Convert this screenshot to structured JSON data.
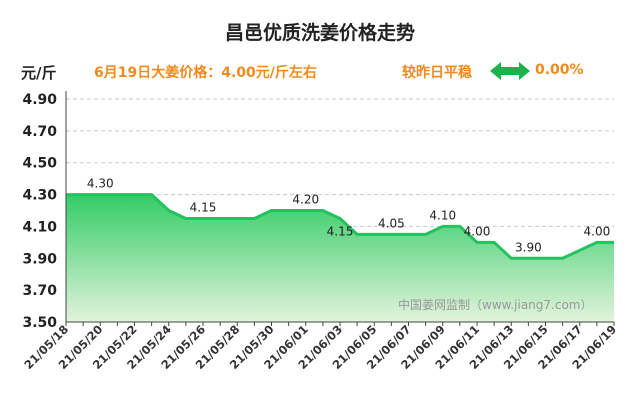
{
  "header": {
    "title": "昌邑优质洗姜价格走势",
    "unit": "元/斤",
    "today_price": "6月19日大姜价格：4.00元/斤左右",
    "compare_label": "较昨日平稳",
    "compare_value": "0.00%"
  },
  "icons": {
    "change_indicator": "double-arrow-icon"
  },
  "colors": {
    "accent": "#f08a1c",
    "arrow": "#19b24b",
    "line": "#22c35e",
    "fill_top": "#33cc66",
    "fill_bottom": "#e3f3dc"
  },
  "watermark": "中国姜网监制（www.jiang7.com）",
  "chart_data": {
    "type": "area",
    "title": "昌邑优质洗姜价格走势",
    "ylabel": "元/斤",
    "xlabel": "",
    "ylim": [
      3.5,
      4.9
    ],
    "yticks": [
      "4.90",
      "4.70",
      "4.50",
      "4.30",
      "4.10",
      "3.90",
      "3.70",
      "3.50"
    ],
    "x_tick_labels": [
      "21/05/18",
      "21/05/20",
      "21/05/22",
      "21/05/24",
      "21/05/26",
      "21/05/28",
      "21/05/30",
      "21/06/01",
      "21/06/03",
      "21/06/05",
      "21/06/07",
      "21/06/09",
      "21/06/11",
      "21/06/13",
      "21/06/15",
      "21/06/17",
      "21/06/19"
    ],
    "x": [
      "21/05/18",
      "21/05/19",
      "21/05/20",
      "21/05/21",
      "21/05/22",
      "21/05/23",
      "21/05/24",
      "21/05/25",
      "21/05/26",
      "21/05/27",
      "21/05/28",
      "21/05/29",
      "21/05/30",
      "21/05/31",
      "21/06/01",
      "21/06/02",
      "21/06/03",
      "21/06/04",
      "21/06/05",
      "21/06/06",
      "21/06/07",
      "21/06/08",
      "21/06/09",
      "21/06/10",
      "21/06/11",
      "21/06/12",
      "21/06/13",
      "21/06/14",
      "21/06/15",
      "21/06/16",
      "21/06/17",
      "21/06/18",
      "21/06/19"
    ],
    "values": [
      4.3,
      4.3,
      4.3,
      4.3,
      4.3,
      4.3,
      4.2,
      4.15,
      4.15,
      4.15,
      4.15,
      4.15,
      4.2,
      4.2,
      4.2,
      4.2,
      4.15,
      4.05,
      4.05,
      4.05,
      4.05,
      4.05,
      4.1,
      4.1,
      4.0,
      4.0,
      3.9,
      3.9,
      3.9,
      3.9,
      3.95,
      4.0,
      4.0
    ],
    "data_labels": [
      {
        "x": "21/05/20",
        "text": "4.30"
      },
      {
        "x": "21/05/26",
        "text": "4.15"
      },
      {
        "x": "21/06/01",
        "text": "4.20"
      },
      {
        "x": "21/06/03",
        "text": "4.15"
      },
      {
        "x": "21/06/06",
        "text": "4.05"
      },
      {
        "x": "21/06/09",
        "text": "4.10"
      },
      {
        "x": "21/06/11",
        "text": "4.00"
      },
      {
        "x": "21/06/14",
        "text": "3.90"
      },
      {
        "x": "21/06/18",
        "text": "4.00"
      }
    ],
    "grid": true,
    "legend": "none"
  }
}
